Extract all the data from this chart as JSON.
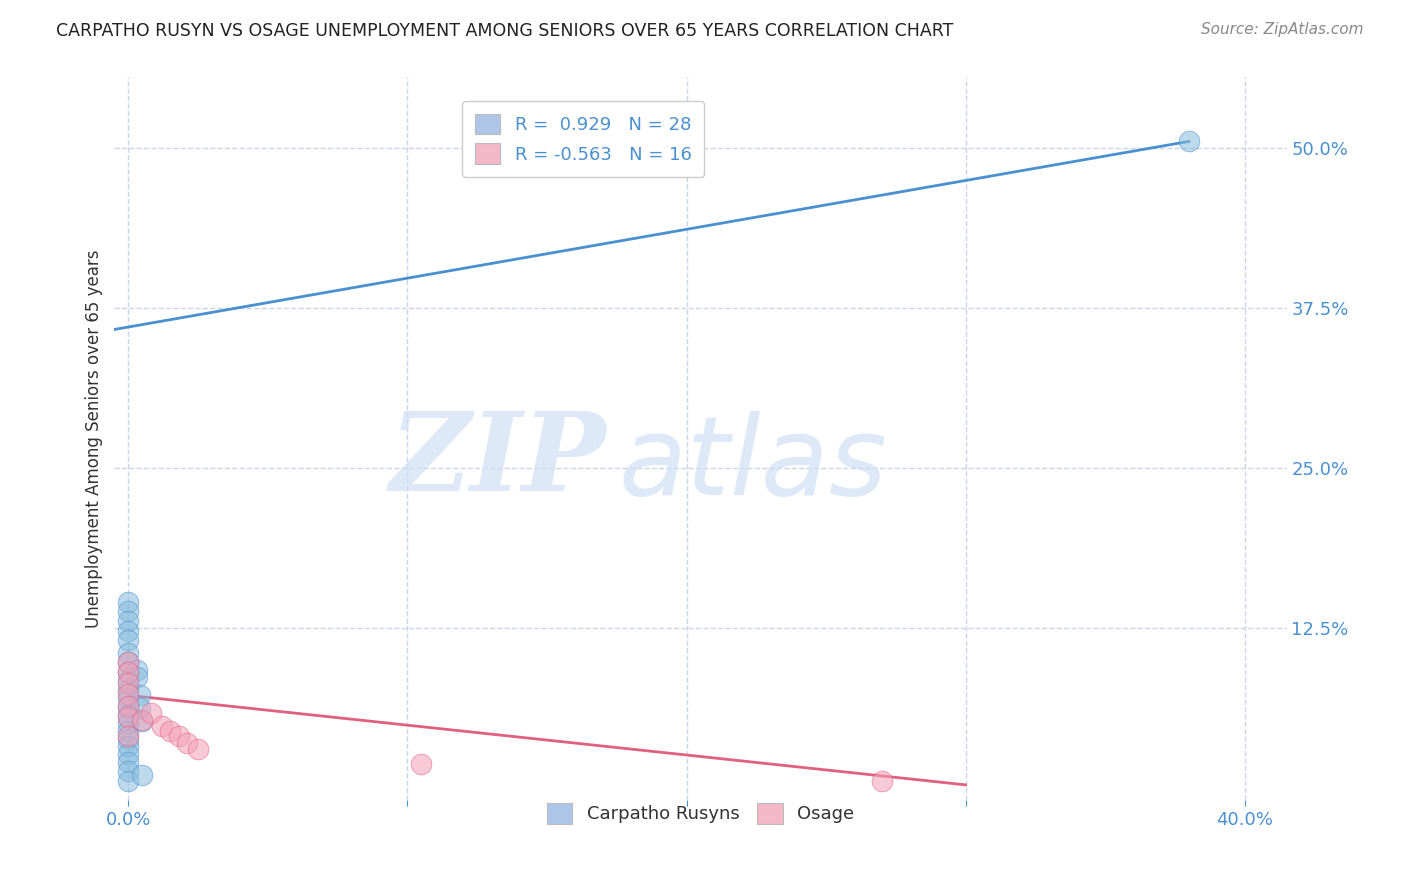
{
  "title": "CARPATHO RUSYN VS OSAGE UNEMPLOYMENT AMONG SENIORS OVER 65 YEARS CORRELATION CHART",
  "source": "Source: ZipAtlas.com",
  "ylabel": "Unemployment Among Seniors over 65 years",
  "xlim": [
    -0.005,
    0.415
  ],
  "ylim": [
    -0.01,
    0.555
  ],
  "x_ticks": [
    0.0,
    0.1,
    0.2,
    0.3,
    0.4
  ],
  "x_tick_labels": [
    "0.0%",
    "",
    "",
    "",
    "40.0%"
  ],
  "y_ticks_right": [
    0.125,
    0.25,
    0.375,
    0.5
  ],
  "y_tick_labels_right": [
    "12.5%",
    "25.0%",
    "37.5%",
    "50.0%"
  ],
  "watermark_zip": "ZIP",
  "watermark_atlas": "atlas",
  "legend_color1": "#aec6e8",
  "legend_color2": "#f4b8c8",
  "scatter_color1": "#88bbdd",
  "scatter_color2": "#f4a0b8",
  "line_color1": "#4a90d0",
  "line_color2": "#e06080",
  "carpatho_x": [
    0.0,
    0.0,
    0.0,
    0.0,
    0.0,
    0.0,
    0.0,
    0.0,
    0.0,
    0.0,
    0.0,
    0.0,
    0.0,
    0.0,
    0.0,
    0.0,
    0.0,
    0.0,
    0.0,
    0.0,
    0.0,
    0.003,
    0.003,
    0.004,
    0.004,
    0.005,
    0.005,
    0.38
  ],
  "carpatho_y": [
    0.145,
    0.138,
    0.13,
    0.122,
    0.115,
    0.105,
    0.098,
    0.09,
    0.083,
    0.076,
    0.07,
    0.063,
    0.057,
    0.05,
    0.044,
    0.038,
    0.032,
    0.026,
    0.02,
    0.013,
    0.005,
    0.092,
    0.086,
    0.072,
    0.062,
    0.052,
    0.01,
    0.505
  ],
  "osage_x": [
    0.0,
    0.0,
    0.0,
    0.0,
    0.0,
    0.0,
    0.0,
    0.005,
    0.008,
    0.012,
    0.015,
    0.018,
    0.021,
    0.025,
    0.105,
    0.27
  ],
  "osage_y": [
    0.098,
    0.09,
    0.082,
    0.073,
    0.064,
    0.055,
    0.04,
    0.053,
    0.058,
    0.048,
    0.044,
    0.04,
    0.035,
    0.03,
    0.018,
    0.005
  ],
  "blue_line_x": [
    -0.005,
    0.38
  ],
  "blue_line_y": [
    0.358,
    0.505
  ],
  "pink_line_x": [
    0.0,
    0.3
  ],
  "pink_line_y": [
    0.072,
    0.002
  ],
  "bg_color": "#ffffff",
  "grid_color": "#c8d4e8",
  "title_color": "#222222",
  "axis_label_color": "#333333",
  "tick_color": "#4a90d0",
  "legend_text_color": "#4a90d0",
  "bottom_legend_text_color": "#333333"
}
